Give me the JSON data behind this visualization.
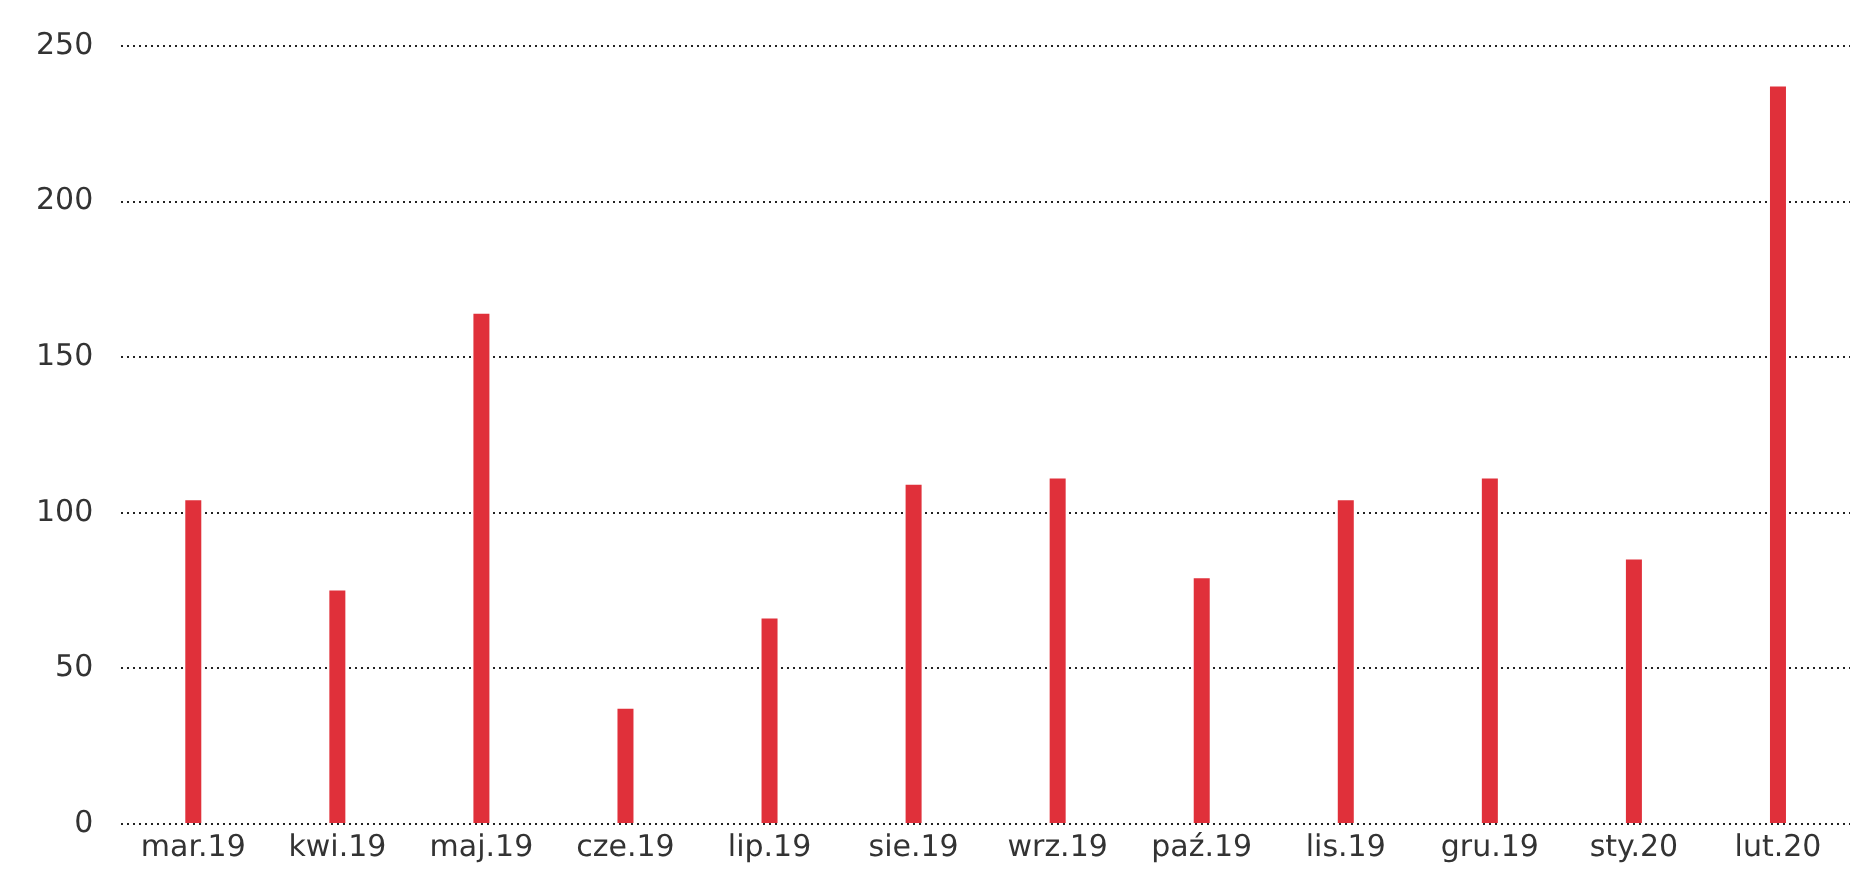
{
  "chart_data": {
    "type": "bar",
    "categories": [
      "mar.19",
      "kwi.19",
      "maj.19",
      "cze.19",
      "lip.19",
      "sie.19",
      "wrz.19",
      "paź.19",
      "lis.19",
      "gru.19",
      "sty.20",
      "lut.20"
    ],
    "values": [
      104,
      75,
      164,
      37,
      66,
      109,
      111,
      79,
      104,
      111,
      85,
      237
    ],
    "color": "#e0303a",
    "ylim": [
      0,
      250
    ],
    "yticks": [
      0,
      50,
      100,
      150,
      200,
      250
    ],
    "grid": "y"
  }
}
